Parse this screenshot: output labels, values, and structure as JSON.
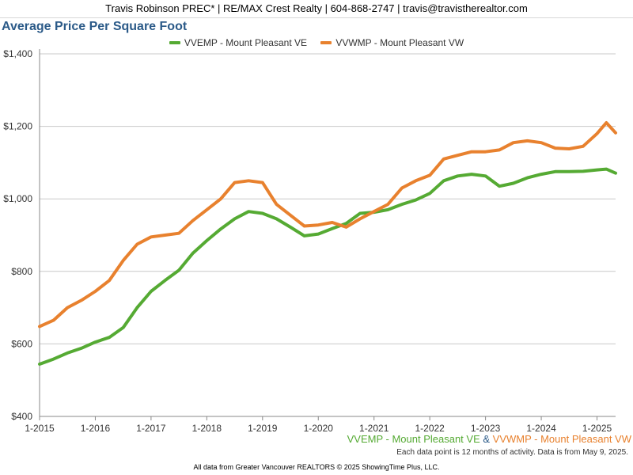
{
  "header": {
    "text": "Travis Robinson PREC* | RE/MAX Crest Realty | 604-868-2747 | travis@travistherealtor.com"
  },
  "footer": {
    "series1": "VVEMP - Mount Pleasant VE",
    "separator": "&",
    "series2": "VVWMP - Mount Pleasant VW",
    "note": "Each data point is 12 months of activity. Data is from May 9, 2025.",
    "credit": "All data from Greater Vancouver REALTORS © 2025 ShowingTime Plus, LLC."
  },
  "chart_data": {
    "type": "line",
    "title": "Average Price Per Square Foot",
    "xlabel": "",
    "ylabel": "",
    "x_tick_labels": [
      "1-2015",
      "1-2016",
      "1-2017",
      "1-2018",
      "1-2019",
      "1-2020",
      "1-2021",
      "1-2022",
      "1-2023",
      "1-2024",
      "1-2025"
    ],
    "y_tick_labels": [
      "$400",
      "$600",
      "$800",
      "$1,000",
      "$1,200",
      "$1,400"
    ],
    "ylim": [
      400,
      1400
    ],
    "x_range": [
      "2015-01",
      "2025-05"
    ],
    "grid": "horizontal",
    "legend_position": "top-center",
    "series": [
      {
        "name": "VVEMP - Mount Pleasant VE",
        "color": "#55aa33",
        "points": [
          [
            "2015-01",
            544
          ],
          [
            "2015-04",
            558
          ],
          [
            "2015-07",
            575
          ],
          [
            "2015-10",
            588
          ],
          [
            "2016-01",
            605
          ],
          [
            "2016-04",
            618
          ],
          [
            "2016-07",
            645
          ],
          [
            "2016-10",
            700
          ],
          [
            "2017-01",
            745
          ],
          [
            "2017-04",
            775
          ],
          [
            "2017-07",
            803
          ],
          [
            "2017-10",
            850
          ],
          [
            "2018-01",
            885
          ],
          [
            "2018-04",
            917
          ],
          [
            "2018-07",
            945
          ],
          [
            "2018-10",
            965
          ],
          [
            "2019-01",
            960
          ],
          [
            "2019-04",
            945
          ],
          [
            "2019-07",
            922
          ],
          [
            "2019-10",
            898
          ],
          [
            "2020-01",
            903
          ],
          [
            "2020-04",
            918
          ],
          [
            "2020-07",
            932
          ],
          [
            "2020-10",
            960
          ],
          [
            "2021-01",
            963
          ],
          [
            "2021-04",
            970
          ],
          [
            "2021-07",
            985
          ],
          [
            "2021-10",
            997
          ],
          [
            "2022-01",
            1015
          ],
          [
            "2022-04",
            1050
          ],
          [
            "2022-07",
            1063
          ],
          [
            "2022-10",
            1068
          ],
          [
            "2023-01",
            1063
          ],
          [
            "2023-04",
            1035
          ],
          [
            "2023-07",
            1043
          ],
          [
            "2023-10",
            1058
          ],
          [
            "2024-01",
            1068
          ],
          [
            "2024-04",
            1075
          ],
          [
            "2024-07",
            1075
          ],
          [
            "2024-10",
            1076
          ],
          [
            "2025-01",
            1080
          ],
          [
            "2025-03",
            1082
          ],
          [
            "2025-05",
            1071
          ]
        ]
      },
      {
        "name": "VVWMP - Mount Pleasant VW",
        "color": "#e8812e",
        "points": [
          [
            "2015-01",
            648
          ],
          [
            "2015-04",
            665
          ],
          [
            "2015-07",
            700
          ],
          [
            "2015-10",
            720
          ],
          [
            "2016-01",
            745
          ],
          [
            "2016-04",
            775
          ],
          [
            "2016-07",
            830
          ],
          [
            "2016-10",
            875
          ],
          [
            "2017-01",
            895
          ],
          [
            "2017-04",
            900
          ],
          [
            "2017-07",
            905
          ],
          [
            "2017-10",
            940
          ],
          [
            "2018-01",
            970
          ],
          [
            "2018-04",
            1000
          ],
          [
            "2018-07",
            1045
          ],
          [
            "2018-10",
            1050
          ],
          [
            "2019-01",
            1045
          ],
          [
            "2019-04",
            985
          ],
          [
            "2019-07",
            955
          ],
          [
            "2019-10",
            925
          ],
          [
            "2020-01",
            928
          ],
          [
            "2020-04",
            935
          ],
          [
            "2020-07",
            922
          ],
          [
            "2020-10",
            945
          ],
          [
            "2021-01",
            965
          ],
          [
            "2021-04",
            985
          ],
          [
            "2021-07",
            1030
          ],
          [
            "2021-10",
            1050
          ],
          [
            "2022-01",
            1065
          ],
          [
            "2022-04",
            1110
          ],
          [
            "2022-07",
            1120
          ],
          [
            "2022-10",
            1130
          ],
          [
            "2023-01",
            1130
          ],
          [
            "2023-04",
            1135
          ],
          [
            "2023-07",
            1155
          ],
          [
            "2023-10",
            1160
          ],
          [
            "2024-01",
            1155
          ],
          [
            "2024-04",
            1140
          ],
          [
            "2024-07",
            1138
          ],
          [
            "2024-10",
            1145
          ],
          [
            "2025-01",
            1180
          ],
          [
            "2025-03",
            1210
          ],
          [
            "2025-05",
            1182
          ]
        ]
      }
    ]
  }
}
